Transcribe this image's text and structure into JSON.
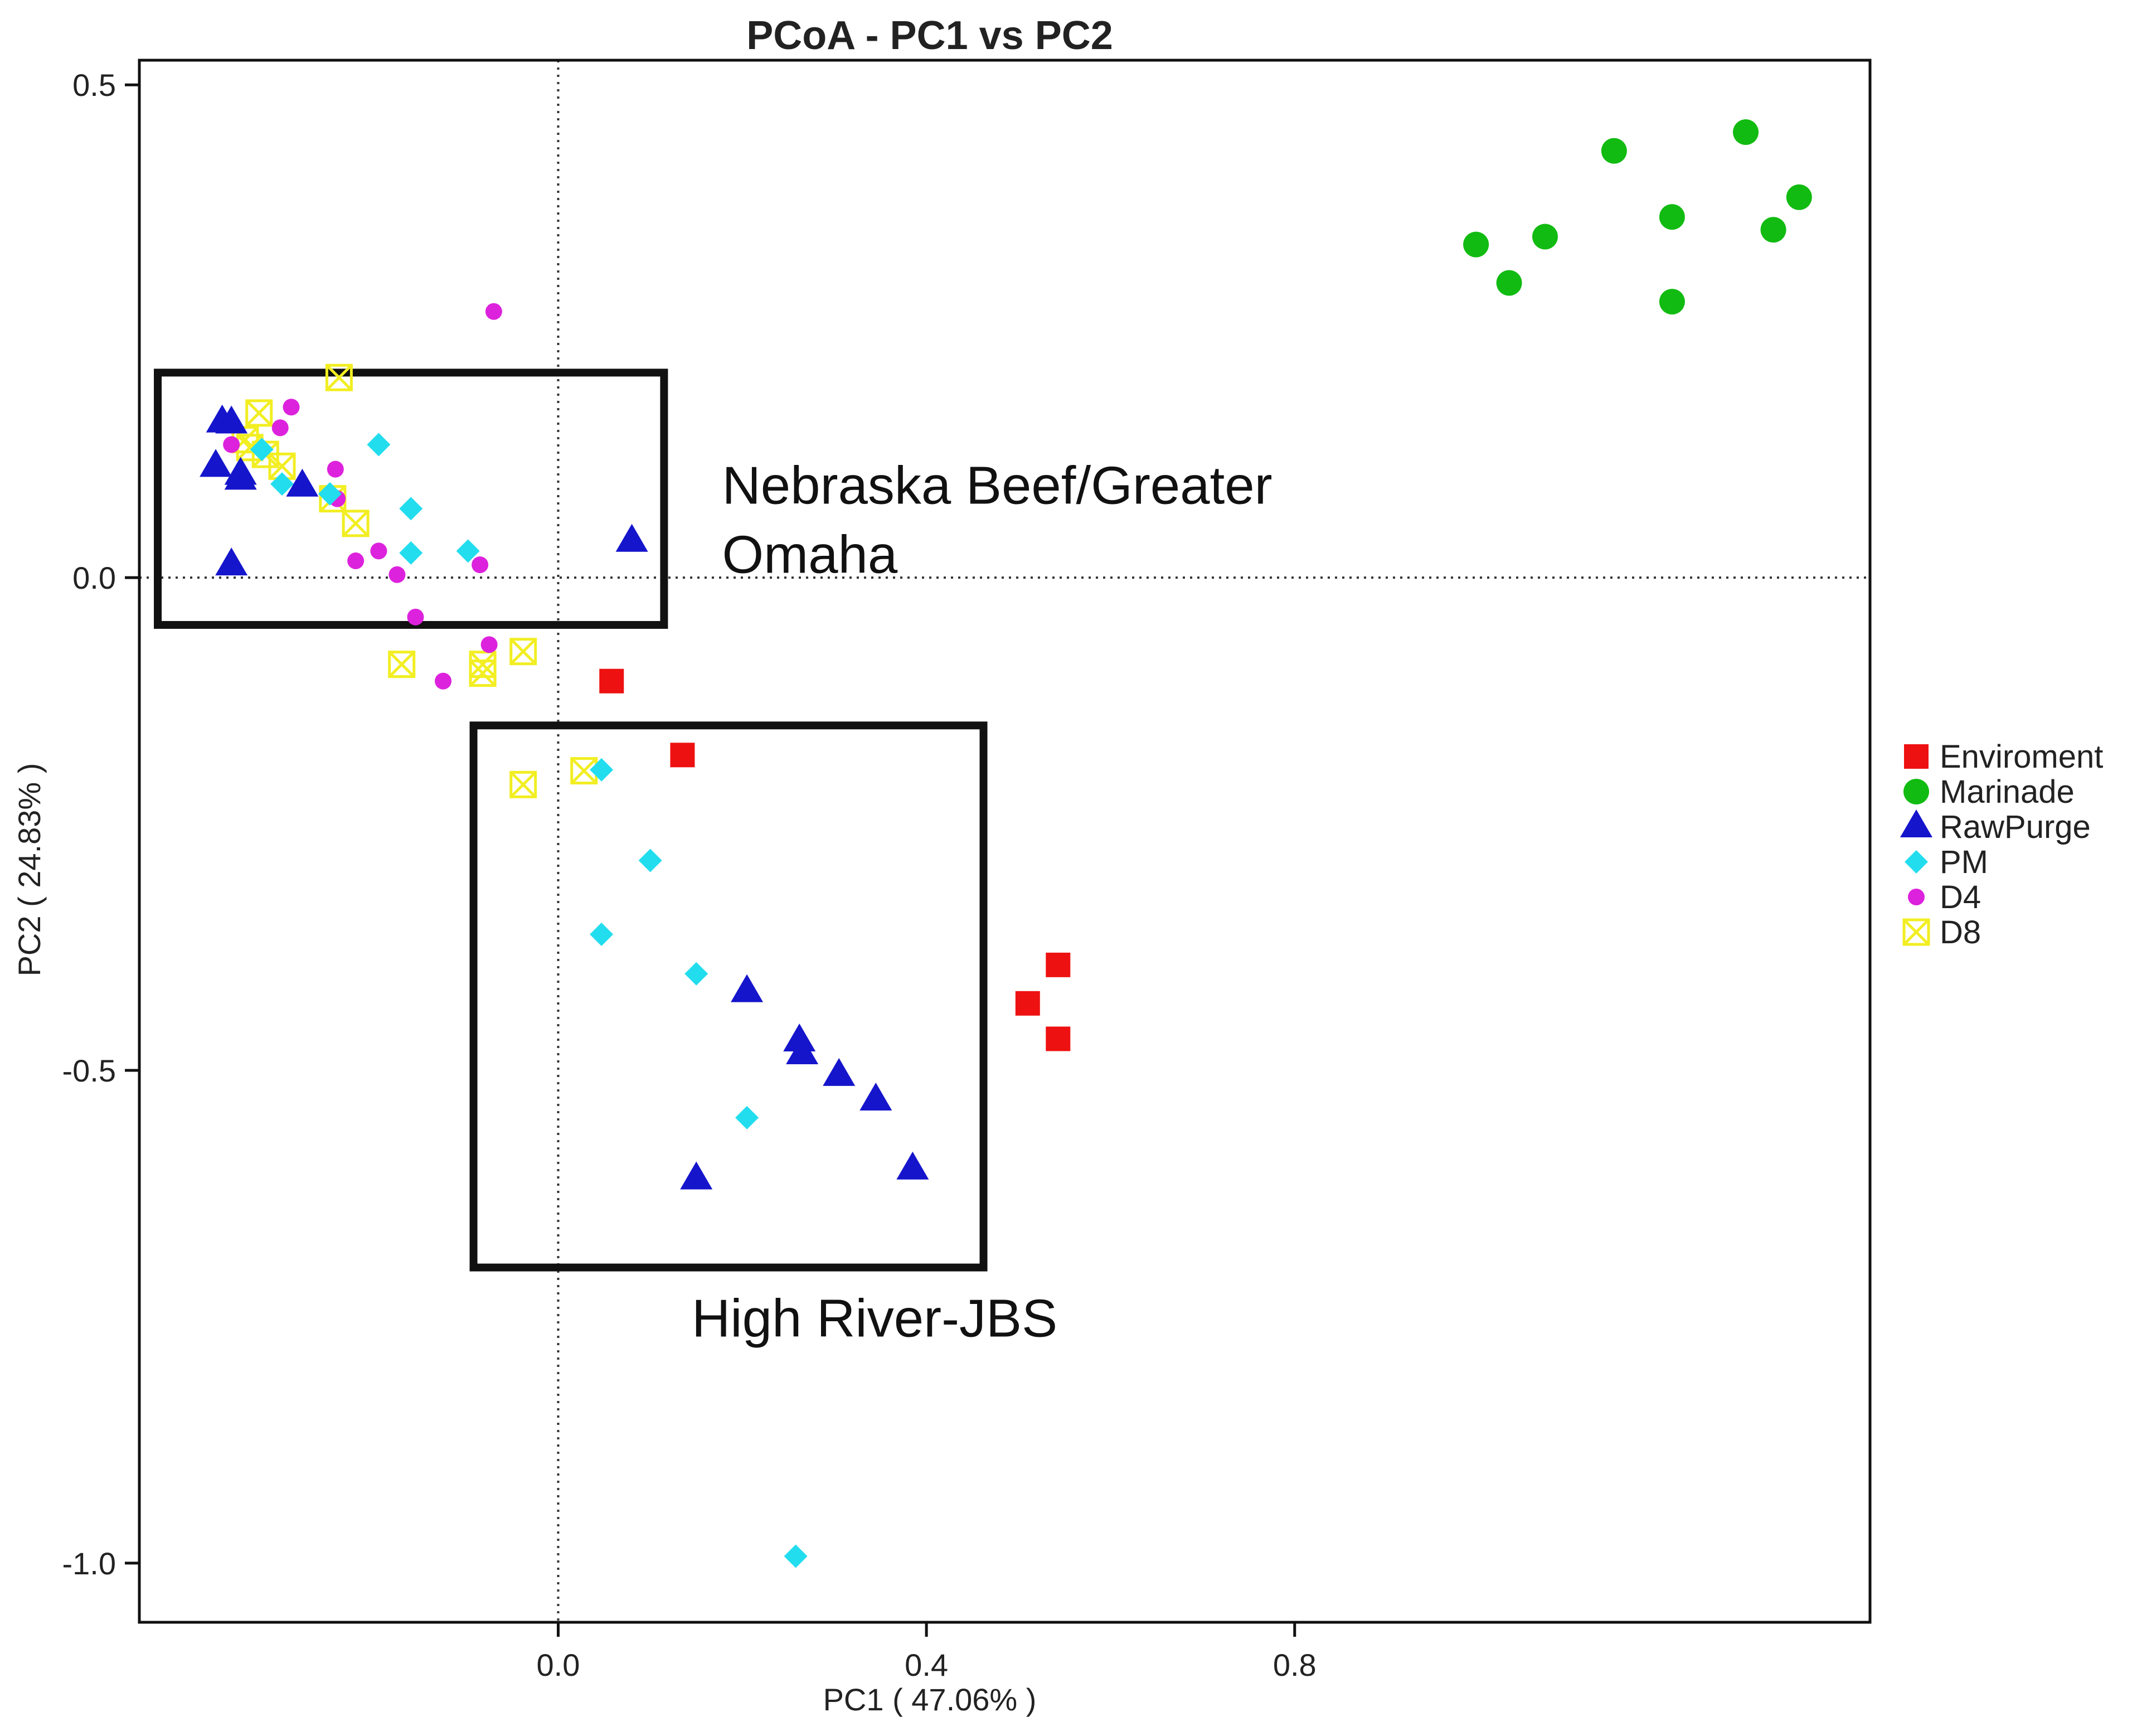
{
  "chart_data": {
    "type": "scatter",
    "title": "PCoA - PC1 vs PC2",
    "xlabel": "PC1 ( 47.06% )",
    "ylabel": "PC2 ( 24.83% )",
    "xlim": [
      -0.455,
      1.425
    ],
    "ylim": [
      -1.06,
      0.525
    ],
    "xticks": [
      0.0,
      0.4,
      0.8
    ],
    "xtick_labels": [
      "0.0",
      "0.4",
      "0.8"
    ],
    "yticks": [
      0.5,
      0.0,
      -0.5,
      -1.0
    ],
    "ytick_labels": [
      "0.5",
      "0.0",
      "-0.5",
      "-1.0"
    ],
    "reference_lines": {
      "x": 0,
      "y": 0,
      "style": "dotted"
    },
    "legend_position": "right",
    "series": [
      {
        "name": "Enviroment",
        "marker": "square",
        "color": "#ee1111",
        "points": [
          [
            0.058,
            -0.105
          ],
          [
            0.135,
            -0.18
          ],
          [
            0.51,
            -0.432
          ],
          [
            0.543,
            -0.393
          ],
          [
            0.543,
            -0.468
          ]
        ]
      },
      {
        "name": "Marinade",
        "marker": "circle",
        "color": "#11bb11",
        "points": [
          [
            0.997,
            0.338
          ],
          [
            1.033,
            0.299
          ],
          [
            1.072,
            0.346
          ],
          [
            1.147,
            0.433
          ],
          [
            1.21,
            0.366
          ],
          [
            1.21,
            0.28
          ],
          [
            1.29,
            0.452
          ],
          [
            1.32,
            0.353
          ],
          [
            1.348,
            0.386
          ]
        ]
      },
      {
        "name": "RawPurge",
        "marker": "triangle",
        "color": "#1515cc",
        "points": [
          [
            -0.365,
            0.158
          ],
          [
            -0.355,
            0.157
          ],
          [
            -0.372,
            0.113
          ],
          [
            -0.345,
            0.105
          ],
          [
            -0.345,
            0.1
          ],
          [
            -0.355,
            0.013
          ],
          [
            -0.278,
            0.093
          ],
          [
            0.08,
            0.037
          ],
          [
            0.205,
            -0.42
          ],
          [
            0.262,
            -0.47
          ],
          [
            0.265,
            -0.483
          ],
          [
            0.305,
            -0.505
          ],
          [
            0.345,
            -0.53
          ],
          [
            0.15,
            -0.61
          ],
          [
            0.385,
            -0.6
          ]
        ]
      },
      {
        "name": "PM",
        "marker": "diamond",
        "color": "#22ddee",
        "points": [
          [
            -0.195,
            0.135
          ],
          [
            -0.16,
            0.07
          ],
          [
            -0.16,
            0.025
          ],
          [
            -0.098,
            0.027
          ],
          [
            -0.3,
            0.095
          ],
          [
            -0.248,
            0.085
          ],
          [
            -0.322,
            0.13
          ],
          [
            0.047,
            -0.195
          ],
          [
            0.1,
            -0.287
          ],
          [
            0.047,
            -0.362
          ],
          [
            0.15,
            -0.402
          ],
          [
            0.205,
            -0.548
          ],
          [
            0.258,
            -0.993
          ]
        ]
      },
      {
        "name": "D4",
        "marker": "circle-small",
        "color": "#dd22dd",
        "points": [
          [
            -0.07,
            0.27
          ],
          [
            -0.29,
            0.173
          ],
          [
            -0.302,
            0.152
          ],
          [
            -0.355,
            0.135
          ],
          [
            -0.242,
            0.11
          ],
          [
            -0.24,
            0.08
          ],
          [
            -0.22,
            0.017
          ],
          [
            -0.195,
            0.027
          ],
          [
            -0.175,
            0.003
          ],
          [
            -0.085,
            0.013
          ],
          [
            -0.155,
            -0.04
          ],
          [
            -0.075,
            -0.068
          ],
          [
            -0.125,
            -0.105
          ]
        ]
      },
      {
        "name": "D8",
        "marker": "boxed-x",
        "color": "#f2ee22",
        "points": [
          [
            -0.238,
            0.203
          ],
          [
            -0.325,
            0.167
          ],
          [
            -0.34,
            0.14
          ],
          [
            -0.335,
            0.132
          ],
          [
            -0.318,
            0.125
          ],
          [
            -0.3,
            0.113
          ],
          [
            -0.245,
            0.08
          ],
          [
            -0.22,
            0.055
          ],
          [
            -0.17,
            -0.088
          ],
          [
            -0.082,
            -0.088
          ],
          [
            -0.082,
            -0.097
          ],
          [
            -0.038,
            -0.075
          ],
          [
            -0.038,
            -0.21
          ],
          [
            0.028,
            -0.196
          ]
        ]
      }
    ],
    "annotations": [
      {
        "text": "Nebraska Beef/Greater",
        "x": 0.178,
        "y": 0.075
      },
      {
        "text": "Omaha",
        "x": 0.178,
        "y": 0.005
      },
      {
        "text": "High River-JBS",
        "x": 0.145,
        "y": -0.77
      }
    ],
    "boxes": [
      {
        "label": "Nebraska Beef/Greater Omaha",
        "x0": -0.435,
        "y0": 0.208,
        "x1": 0.115,
        "y1": -0.048
      },
      {
        "label": "High River-JBS",
        "x0": -0.092,
        "y0": -0.15,
        "x1": 0.462,
        "y1": -0.7
      }
    ]
  }
}
